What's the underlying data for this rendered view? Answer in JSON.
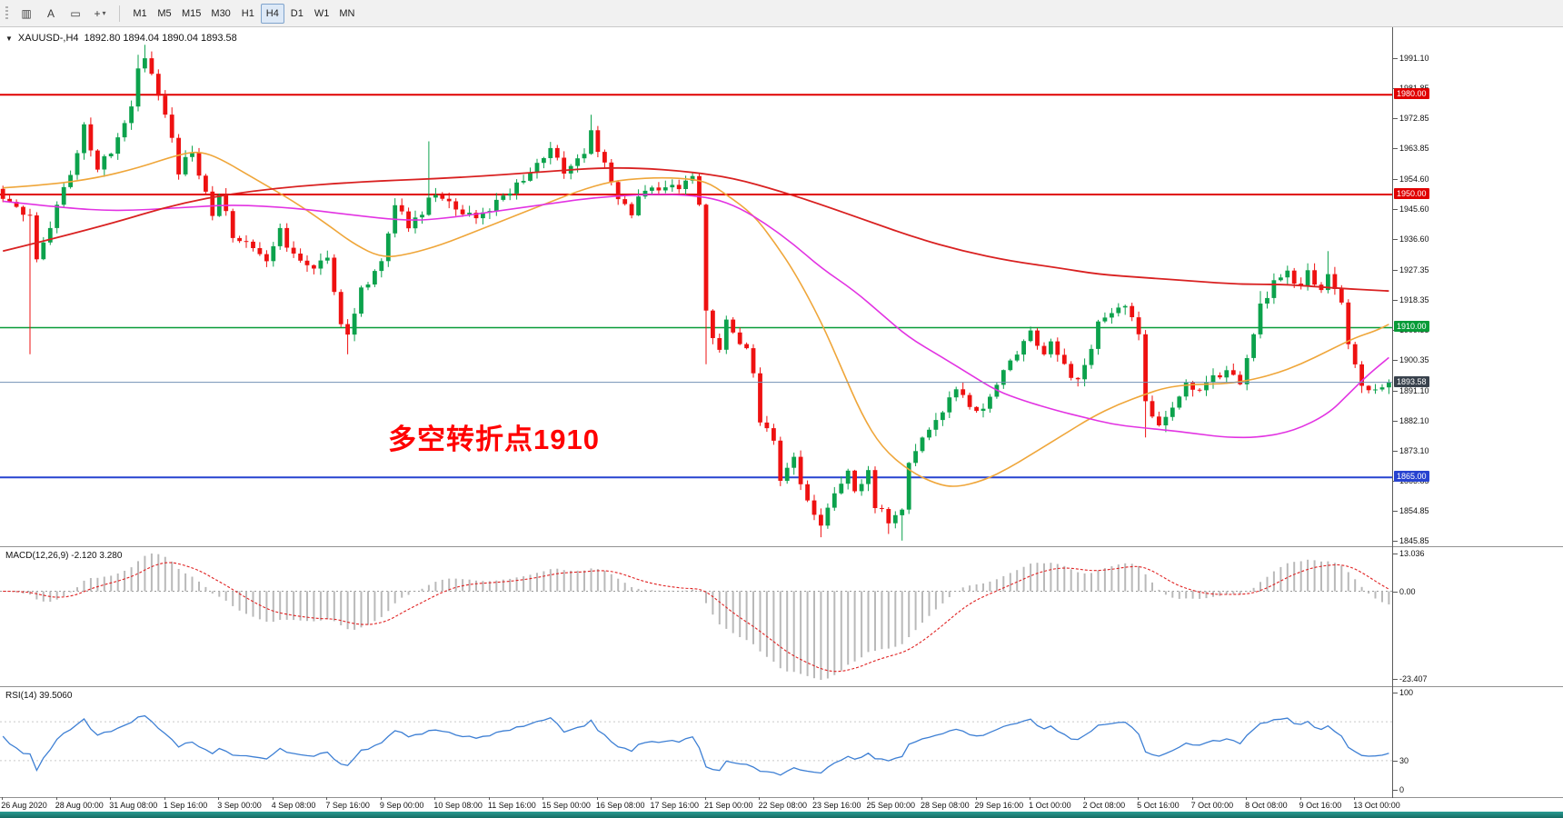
{
  "toolbar": {
    "icon_buttons": [
      {
        "name": "chart-bars",
        "glyph": "▥"
      },
      {
        "name": "text-label",
        "glyph": "A"
      },
      {
        "name": "object-box",
        "glyph": "▭"
      },
      {
        "name": "crosshair",
        "glyph": "+"
      }
    ],
    "dropdown_caret": "▾",
    "timeframes": [
      "M1",
      "M5",
      "M15",
      "M30",
      "H1",
      "H4",
      "D1",
      "W1",
      "MN"
    ],
    "active_timeframe": "H4"
  },
  "chart": {
    "header": {
      "dropdown_icon": "▼",
      "symbol": "XAUUSD-,H4",
      "ohlc": "1892.80 1894.04 1890.04 1893.58"
    },
    "annotation": {
      "text": "多空转折点1910",
      "color": "#ff0000"
    },
    "y_ticks": [
      "1991.10",
      "1981.85",
      "1972.85",
      "1963.85",
      "1954.60",
      "1945.60",
      "1936.60",
      "1927.35",
      "1918.35",
      "1909.35",
      "1900.35",
      "1891.10",
      "1882.10",
      "1873.10",
      "1863.85",
      "1854.85",
      "1845.85"
    ],
    "x_labels": [
      "26 Aug 2020",
      "28 Aug 00:00",
      "31 Aug 08:00",
      "1 Sep 16:00",
      "3 Sep 00:00",
      "4 Sep 08:00",
      "7 Sep 16:00",
      "9 Sep 00:00",
      "10 Sep 08:00",
      "11 Sep 16:00",
      "15 Sep 00:00",
      "16 Sep 08:00",
      "17 Sep 16:00",
      "21 Sep 00:00",
      "22 Sep 08:00",
      "23 Sep 16:00",
      "25 Sep 00:00",
      "28 Sep 08:00",
      "29 Sep 16:00",
      "1 Oct 00:00",
      "2 Oct 08:00",
      "5 Oct 16:00",
      "7 Oct 00:00",
      "8 Oct 08:00",
      "9 Oct 16:00",
      "13 Oct 00:00"
    ]
  },
  "chart_data": {
    "type": "candlestick",
    "symbol": "XAUUSD-",
    "timeframe": "H4",
    "ohlc_display": {
      "open": "1892.80",
      "high": "1894.04",
      "low": "1890.04",
      "close": "1893.58"
    },
    "num_candles": 206,
    "candle_spacing": 7.44,
    "price_max": 2000.0,
    "price_min": 1844.3,
    "current_price": {
      "price": 1893.58,
      "label": "1893.58"
    },
    "hlines": [
      {
        "price": 1980.0,
        "label": "1980.00",
        "color": "#e00000",
        "width": 2
      },
      {
        "price": 1950.0,
        "label": "1950.00",
        "color": "#e00000",
        "width": 2
      },
      {
        "price": 1910.0,
        "label": "1910.00",
        "color": "#089b38",
        "width": 1.4
      },
      {
        "price": 1865.0,
        "label": "1865.00",
        "color": "#2743d0",
        "width": 2
      }
    ],
    "close_path": [
      [
        0,
        1950
      ],
      [
        2,
        1946
      ],
      [
        4,
        1944
      ],
      [
        5,
        1931
      ],
      [
        7,
        1941
      ],
      [
        9,
        1952
      ],
      [
        11,
        1962
      ],
      [
        12,
        1970
      ],
      [
        14,
        1958
      ],
      [
        16,
        1963
      ],
      [
        17,
        1968
      ],
      [
        19,
        1977
      ],
      [
        20,
        1989
      ],
      [
        21,
        1991
      ],
      [
        23,
        1981
      ],
      [
        25,
        1967
      ],
      [
        26,
        1957
      ],
      [
        28,
        1963
      ],
      [
        30,
        1950
      ],
      [
        31,
        1944
      ],
      [
        32,
        1951
      ],
      [
        34,
        1938
      ],
      [
        37,
        1935
      ],
      [
        39,
        1929
      ],
      [
        41,
        1939
      ],
      [
        43,
        1931
      ],
      [
        45,
        1928
      ],
      [
        48,
        1931
      ],
      [
        49,
        1921
      ],
      [
        50,
        1911
      ],
      [
        51,
        1907
      ],
      [
        53,
        1921
      ],
      [
        56,
        1930
      ],
      [
        58,
        1947
      ],
      [
        60,
        1941
      ],
      [
        62,
        1945
      ],
      [
        64,
        1951
      ],
      [
        66,
        1947
      ],
      [
        68,
        1944
      ],
      [
        70,
        1943
      ],
      [
        72,
        1945
      ],
      [
        74,
        1950
      ],
      [
        76,
        1953
      ],
      [
        78,
        1957
      ],
      [
        80,
        1961
      ],
      [
        81,
        1965
      ],
      [
        83,
        1957
      ],
      [
        84,
        1959
      ],
      [
        86,
        1963
      ],
      [
        87,
        1969
      ],
      [
        89,
        1959
      ],
      [
        91,
        1948
      ],
      [
        93,
        1944
      ],
      [
        94,
        1949
      ],
      [
        96,
        1951
      ],
      [
        98,
        1953
      ],
      [
        100,
        1951
      ],
      [
        101,
        1953
      ],
      [
        102,
        1955
      ],
      [
        103,
        1948
      ],
      [
        104,
        1916
      ],
      [
        105,
        1908
      ],
      [
        106,
        1903
      ],
      [
        107,
        1912
      ],
      [
        108,
        1909
      ],
      [
        110,
        1903
      ],
      [
        111,
        1897
      ],
      [
        112,
        1882
      ],
      [
        114,
        1877
      ],
      [
        115,
        1864
      ],
      [
        117,
        1872
      ],
      [
        118,
        1862
      ],
      [
        120,
        1854
      ],
      [
        121,
        1851
      ],
      [
        123,
        1861
      ],
      [
        125,
        1867
      ],
      [
        126,
        1861
      ],
      [
        128,
        1866
      ],
      [
        129,
        1857
      ],
      [
        131,
        1852
      ],
      [
        133,
        1856
      ],
      [
        134,
        1869
      ],
      [
        136,
        1877
      ],
      [
        139,
        1885
      ],
      [
        141,
        1891
      ],
      [
        144,
        1884
      ],
      [
        146,
        1889
      ],
      [
        148,
        1897
      ],
      [
        150,
        1903
      ],
      [
        152,
        1909
      ],
      [
        154,
        1902
      ],
      [
        155,
        1907
      ],
      [
        157,
        1898
      ],
      [
        159,
        1894
      ],
      [
        161,
        1903
      ],
      [
        162,
        1911
      ],
      [
        164,
        1915
      ],
      [
        166,
        1917
      ],
      [
        168,
        1907
      ],
      [
        169,
        1888
      ],
      [
        171,
        1881
      ],
      [
        173,
        1887
      ],
      [
        175,
        1893
      ],
      [
        177,
        1890
      ],
      [
        179,
        1895
      ],
      [
        181,
        1897
      ],
      [
        183,
        1893
      ],
      [
        185,
        1907
      ],
      [
        186,
        1917
      ],
      [
        188,
        1923
      ],
      [
        190,
        1927
      ],
      [
        192,
        1922
      ],
      [
        193,
        1926
      ],
      [
        195,
        1921
      ],
      [
        196,
        1925
      ],
      [
        198,
        1917
      ],
      [
        199,
        1905
      ],
      [
        201,
        1893
      ],
      [
        203,
        1891
      ],
      [
        204,
        1892
      ],
      [
        205,
        1893.58
      ]
    ],
    "spikes": [
      {
        "i": 4,
        "low": 1902
      },
      {
        "i": 20,
        "high": 1992
      },
      {
        "i": 21,
        "high": 1995
      },
      {
        "i": 22,
        "high": 1993
      },
      {
        "i": 51,
        "low": 1902
      },
      {
        "i": 63,
        "high": 1966
      },
      {
        "i": 87,
        "high": 1974
      },
      {
        "i": 104,
        "low": 1899
      },
      {
        "i": 121,
        "low": 1847
      },
      {
        "i": 131,
        "low": 1848
      },
      {
        "i": 133,
        "low": 1846
      },
      {
        "i": 169,
        "low": 1877
      },
      {
        "i": 186,
        "high": 1921
      },
      {
        "i": 196,
        "high": 1933
      }
    ],
    "moving_averages": [
      {
        "name": "ma-orange-fast",
        "color": "#efa63a",
        "width": 1.6,
        "points": [
          [
            0,
            1952
          ],
          [
            7,
            1953
          ],
          [
            14,
            1955
          ],
          [
            20,
            1958
          ],
          [
            26,
            1962
          ],
          [
            29,
            1963
          ],
          [
            32,
            1961
          ],
          [
            37,
            1955
          ],
          [
            43,
            1948
          ],
          [
            48,
            1941
          ],
          [
            52,
            1935
          ],
          [
            56,
            1931
          ],
          [
            60,
            1932
          ],
          [
            65,
            1935
          ],
          [
            70,
            1939
          ],
          [
            75,
            1943
          ],
          [
            80,
            1947
          ],
          [
            85,
            1951
          ],
          [
            90,
            1954
          ],
          [
            95,
            1955
          ],
          [
            100,
            1955
          ],
          [
            104,
            1954
          ],
          [
            107,
            1950
          ],
          [
            111,
            1944
          ],
          [
            114,
            1936
          ],
          [
            117,
            1927
          ],
          [
            121,
            1912
          ],
          [
            124,
            1898
          ],
          [
            127,
            1884
          ],
          [
            130,
            1874
          ],
          [
            134,
            1867
          ],
          [
            138,
            1863
          ],
          [
            141,
            1862
          ],
          [
            145,
            1864
          ],
          [
            149,
            1868
          ],
          [
            153,
            1873
          ],
          [
            157,
            1878
          ],
          [
            161,
            1883
          ],
          [
            165,
            1887
          ],
          [
            169,
            1890
          ],
          [
            172,
            1892
          ],
          [
            176,
            1893
          ],
          [
            180,
            1893
          ],
          [
            184,
            1894
          ],
          [
            188,
            1896
          ],
          [
            192,
            1899
          ],
          [
            196,
            1903
          ],
          [
            200,
            1907
          ],
          [
            203,
            1909
          ],
          [
            205,
            1911
          ]
        ]
      },
      {
        "name": "ma-magenta-mid",
        "color": "#e233e2",
        "width": 1.6,
        "points": [
          [
            0,
            1948
          ],
          [
            9,
            1946
          ],
          [
            17,
            1945
          ],
          [
            26,
            1946
          ],
          [
            34,
            1947
          ],
          [
            43,
            1946
          ],
          [
            51,
            1944
          ],
          [
            60,
            1942
          ],
          [
            66,
            1943
          ],
          [
            73,
            1945
          ],
          [
            80,
            1947
          ],
          [
            87,
            1949
          ],
          [
            94,
            1950
          ],
          [
            100,
            1950
          ],
          [
            105,
            1949
          ],
          [
            109,
            1946
          ],
          [
            113,
            1941
          ],
          [
            117,
            1935
          ],
          [
            121,
            1928
          ],
          [
            126,
            1921
          ],
          [
            130,
            1914
          ],
          [
            134,
            1907
          ],
          [
            139,
            1901
          ],
          [
            143,
            1896
          ],
          [
            147,
            1891
          ],
          [
            151,
            1888
          ],
          [
            156,
            1885
          ],
          [
            160,
            1883
          ],
          [
            164,
            1881
          ],
          [
            168,
            1880
          ],
          [
            173,
            1879
          ],
          [
            177,
            1878
          ],
          [
            181,
            1877
          ],
          [
            186,
            1877
          ],
          [
            191,
            1879
          ],
          [
            196,
            1884
          ],
          [
            199,
            1890
          ],
          [
            202,
            1896
          ],
          [
            205,
            1901
          ]
        ]
      },
      {
        "name": "ma-red-slow",
        "color": "#d92121",
        "width": 1.8,
        "points": [
          [
            0,
            1933
          ],
          [
            14,
            1940
          ],
          [
            27,
            1948
          ],
          [
            40,
            1952
          ],
          [
            54,
            1954
          ],
          [
            67,
            1955
          ],
          [
            81,
            1957
          ],
          [
            88,
            1958
          ],
          [
            94,
            1958
          ],
          [
            101,
            1957
          ],
          [
            108,
            1955
          ],
          [
            115,
            1951
          ],
          [
            121,
            1947
          ],
          [
            128,
            1942
          ],
          [
            135,
            1937
          ],
          [
            142,
            1933
          ],
          [
            149,
            1930
          ],
          [
            156,
            1928
          ],
          [
            162,
            1926
          ],
          [
            169,
            1925
          ],
          [
            176,
            1924
          ],
          [
            183,
            1923
          ],
          [
            190,
            1923
          ],
          [
            196,
            1922
          ],
          [
            205,
            1921
          ]
        ]
      }
    ]
  },
  "macd_panel": {
    "label": "MACD(12,26,9) -2.120 3.280",
    "fast": 12,
    "slow": 26,
    "signal": 9,
    "axis_max": "13.036",
    "axis_zero": "0.00",
    "axis_min": "-23.407"
  },
  "rsi_panel": {
    "label": "RSI(14) 39.5060",
    "period": 14,
    "value": 39.506,
    "axis_top": "100",
    "axis_mid": "30",
    "axis_bottom": "0",
    "levels": [
      70,
      30
    ]
  },
  "colors": {
    "bull": "#0ca24c",
    "bear": "#ee1111",
    "price_line": "#7291b4",
    "price_label_bg": "#39424d",
    "macd_hist": "#b9b9b9",
    "macd_signal": "#e02222",
    "macd_zero": "#9a9a9a",
    "rsi_line": "#3d7fd4",
    "rsi_level": "#c9c9c9",
    "annotation": "#ff0000",
    "axis_text": "#1a1a1a",
    "bottom_strip": "#1d8078",
    "toolbar_bg": "#f1f1f1"
  }
}
